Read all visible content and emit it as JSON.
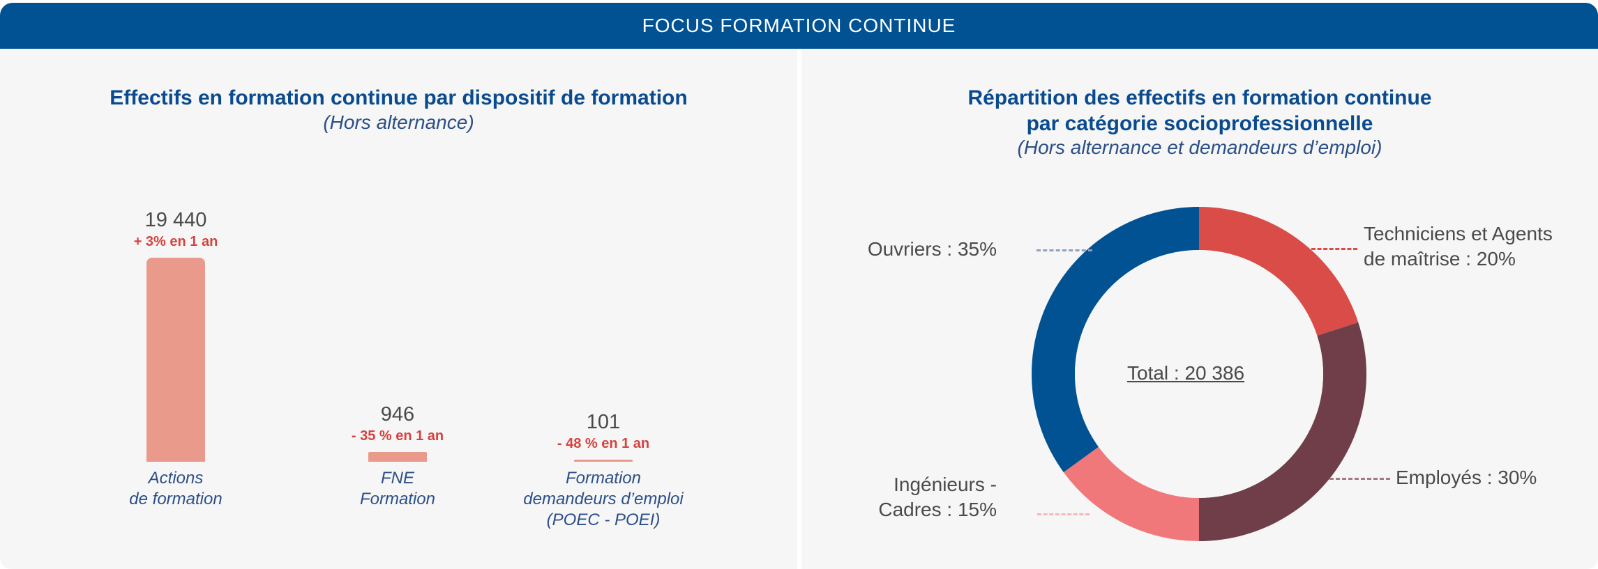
{
  "header": {
    "title": "FOCUS FORMATION CONTINUE"
  },
  "colors": {
    "header": "#005293",
    "bar": "#e99a8a",
    "change_text": "#d8413e",
    "title_text": "#0a4b8f"
  },
  "left": {
    "title": "Effectifs en formation continue par dispositif de formation",
    "subtitle": "(Hors alternance)"
  },
  "right": {
    "title_line1": "Répartition des effectifs en formation continue",
    "title_line2": "par catégorie socioprofessionnelle",
    "subtitle": "(Hors alternance et demandeurs d’emploi)",
    "total": "Total : 20 386"
  },
  "chart_data": [
    {
      "type": "bar",
      "title": "Effectifs en formation continue par dispositif de formation",
      "subtitle": "(Hors alternance)",
      "categories": [
        [
          "Actions",
          "de formation"
        ],
        [
          "FNE",
          "Formation"
        ],
        [
          "Formation",
          "demandeurs d’emploi",
          "(POEC - POEI)"
        ]
      ],
      "values": [
        19440,
        946,
        101
      ],
      "value_labels": [
        "19 440",
        "946",
        "101"
      ],
      "changes": [
        "+ 3% en 1 an",
        "- 35 % en 1 an",
        "- 48 % en 1 an"
      ],
      "ylim": [
        0,
        19440
      ],
      "grid": false,
      "color": "#e99a8a"
    },
    {
      "type": "pie",
      "title": "Répartition des effectifs en formation continue par catégorie socioprofessionnelle",
      "subtitle": "(Hors alternance et demandeurs d’emploi)",
      "total": 20386,
      "slices": [
        {
          "label": "Techniciens et Agents de maîtrise",
          "text": [
            "Techniciens et Agents",
            "de maîtrise : 20%"
          ],
          "value": 20,
          "color": "#d94c47",
          "leader": "#d94c47"
        },
        {
          "label": "Employés",
          "text": [
            "Employés : 30%"
          ],
          "value": 30,
          "color": "#6f3e49",
          "leader": "#a67a84"
        },
        {
          "label": "Ingénieurs - Cadres",
          "text": [
            "Ingénieurs -",
            "Cadres : 15%"
          ],
          "value": 15,
          "color": "#f0787a",
          "leader": "#f4b8b8"
        },
        {
          "label": "Ouvriers",
          "text": [
            "Ouvriers : 35%"
          ],
          "value": 35,
          "color": "#005293",
          "leader": "#8e9fc4"
        }
      ]
    }
  ]
}
